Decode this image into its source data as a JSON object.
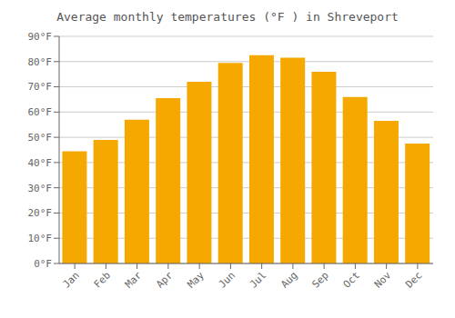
{
  "chart_data": {
    "type": "bar",
    "title": "Average monthly temperatures (°F ) in Shreveport",
    "categories": [
      "Jan",
      "Feb",
      "Mar",
      "Apr",
      "May",
      "Jun",
      "Jul",
      "Aug",
      "Sep",
      "Oct",
      "Nov",
      "Dec"
    ],
    "values": [
      44.5,
      49.0,
      57.0,
      65.5,
      72.0,
      79.5,
      82.5,
      81.5,
      76.0,
      66.0,
      56.5,
      47.5
    ],
    "color": "#F5A800",
    "ylim": [
      0,
      90
    ],
    "yticks": [
      {
        "value": 0,
        "label": "0°F"
      },
      {
        "value": 10,
        "label": "10°F"
      },
      {
        "value": 20,
        "label": "20°F"
      },
      {
        "value": 30,
        "label": "30°F"
      },
      {
        "value": 40,
        "label": "40°F"
      },
      {
        "value": 50,
        "label": "50°F"
      },
      {
        "value": 60,
        "label": "60°F"
      },
      {
        "value": 70,
        "label": "70°F"
      },
      {
        "value": 80,
        "label": "80°F"
      },
      {
        "value": 90,
        "label": "90°F"
      }
    ],
    "grid": true
  }
}
